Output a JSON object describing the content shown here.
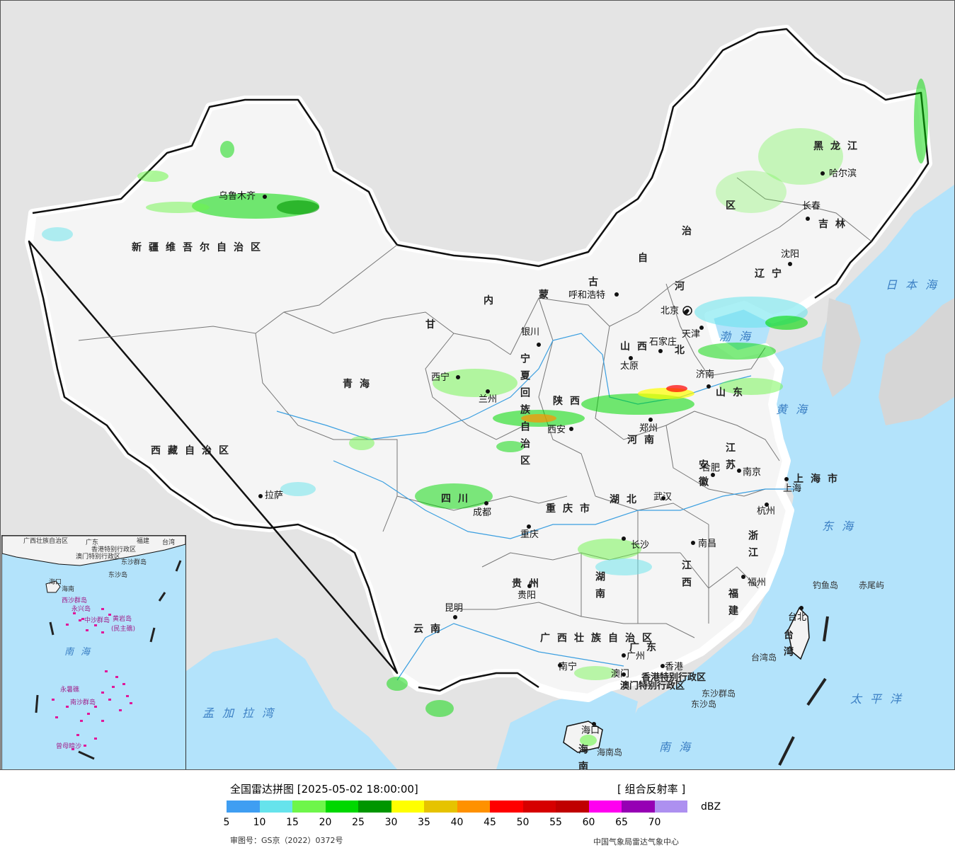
{
  "map": {
    "provinces": [
      {
        "name": "新疆维吾尔自治区"
      },
      {
        "name": "西藏自治区"
      },
      {
        "name": "青海"
      },
      {
        "name": "甘"
      },
      {
        "name": "内"
      },
      {
        "name": "蒙"
      },
      {
        "name": "古"
      },
      {
        "name": "自"
      },
      {
        "name": "治"
      },
      {
        "name": "区"
      },
      {
        "name": "黑龙江"
      },
      {
        "name": "吉林"
      },
      {
        "name": "辽宁"
      },
      {
        "name": "河"
      },
      {
        "name": "北"
      },
      {
        "name": "山西"
      },
      {
        "name": "陕西"
      },
      {
        "name": "山东"
      },
      {
        "name": "河南"
      },
      {
        "name": "江苏"
      },
      {
        "name": "安徽"
      },
      {
        "name": "湖北"
      },
      {
        "name": "四川"
      },
      {
        "name": "重庆市"
      },
      {
        "name": "湖南"
      },
      {
        "name": "江西"
      },
      {
        "name": "浙江"
      },
      {
        "name": "福建"
      },
      {
        "name": "贵州"
      },
      {
        "name": "云南"
      },
      {
        "name": "广西壮族自治区"
      },
      {
        "name": "广东"
      },
      {
        "name": "台湾"
      },
      {
        "name": "海南"
      },
      {
        "name": "上海市"
      },
      {
        "name": "宁夏回族自治区"
      }
    ],
    "cities": [
      {
        "name": "乌鲁木齐"
      },
      {
        "name": "拉萨"
      },
      {
        "name": "西宁"
      },
      {
        "name": "兰州"
      },
      {
        "name": "银川"
      },
      {
        "name": "呼和浩特"
      },
      {
        "name": "哈尔滨"
      },
      {
        "name": "长春"
      },
      {
        "name": "沈阳"
      },
      {
        "name": "北京"
      },
      {
        "name": "天津"
      },
      {
        "name": "石家庄"
      },
      {
        "name": "太原"
      },
      {
        "name": "济南"
      },
      {
        "name": "西安"
      },
      {
        "name": "郑州"
      },
      {
        "name": "合肥"
      },
      {
        "name": "南京"
      },
      {
        "name": "上海"
      },
      {
        "name": "杭州"
      },
      {
        "name": "武汉"
      },
      {
        "name": "成都"
      },
      {
        "name": "重庆"
      },
      {
        "name": "长沙"
      },
      {
        "name": "南昌"
      },
      {
        "name": "福州"
      },
      {
        "name": "台北"
      },
      {
        "name": "贵阳"
      },
      {
        "name": "昆明"
      },
      {
        "name": "南宁"
      },
      {
        "name": "广州"
      },
      {
        "name": "香港"
      },
      {
        "name": "澳门"
      },
      {
        "name": "海口"
      }
    ],
    "special_regions": [
      {
        "name": "香港特别行政区"
      },
      {
        "name": "澳门特别行政区"
      }
    ],
    "seas": [
      {
        "name": "日本海"
      },
      {
        "name": "渤海"
      },
      {
        "name": "黄海"
      },
      {
        "name": "东海"
      },
      {
        "name": "太平洋"
      },
      {
        "name": "南海"
      },
      {
        "name": "孟加拉湾"
      }
    ],
    "islands": [
      {
        "name": "钓鱼岛"
      },
      {
        "name": "赤尾屿"
      },
      {
        "name": "台湾岛"
      },
      {
        "name": "海南岛"
      },
      {
        "name": "东沙群岛"
      },
      {
        "name": "东沙岛"
      }
    ]
  },
  "inset": {
    "labels": [
      {
        "name": "广西壮族自治区"
      },
      {
        "name": "广东"
      },
      {
        "name": "福建"
      },
      {
        "name": "台湾"
      },
      {
        "name": "香港特别行政区"
      },
      {
        "name": "澳门特别行政区"
      },
      {
        "name": "东沙群岛"
      },
      {
        "name": "东沙岛"
      },
      {
        "name": "海口"
      },
      {
        "name": "海南"
      },
      {
        "name": "西沙群岛"
      },
      {
        "name": "永兴岛"
      },
      {
        "name": "中沙群岛"
      },
      {
        "name": "黄岩岛"
      },
      {
        "name": "(民主礁)"
      },
      {
        "name": "南海"
      },
      {
        "name": "永暑礁"
      },
      {
        "name": "南沙群岛"
      },
      {
        "name": "曾母暗沙"
      }
    ]
  },
  "legend": {
    "title": "全国雷达拼图 [2025-05-02 18:00:00]",
    "product": "[ 组合反射率 ]",
    "unit": "dBZ",
    "colors": [
      "#3f9ef2",
      "#66e3ec",
      "#6ef64a",
      "#00d800",
      "#009600",
      "#ffff00",
      "#e6c300",
      "#ff9100",
      "#ff0000",
      "#d60000",
      "#c00000",
      "#ff00f0",
      "#9600b4",
      "#ad90f0"
    ],
    "ticks": [
      "5",
      "10",
      "15",
      "20",
      "25",
      "30",
      "35",
      "40",
      "45",
      "50",
      "55",
      "60",
      "65",
      "70"
    ],
    "approval_number": "审图号：GS京（2022）0372号",
    "source": "中国气象局雷达气象中心"
  }
}
